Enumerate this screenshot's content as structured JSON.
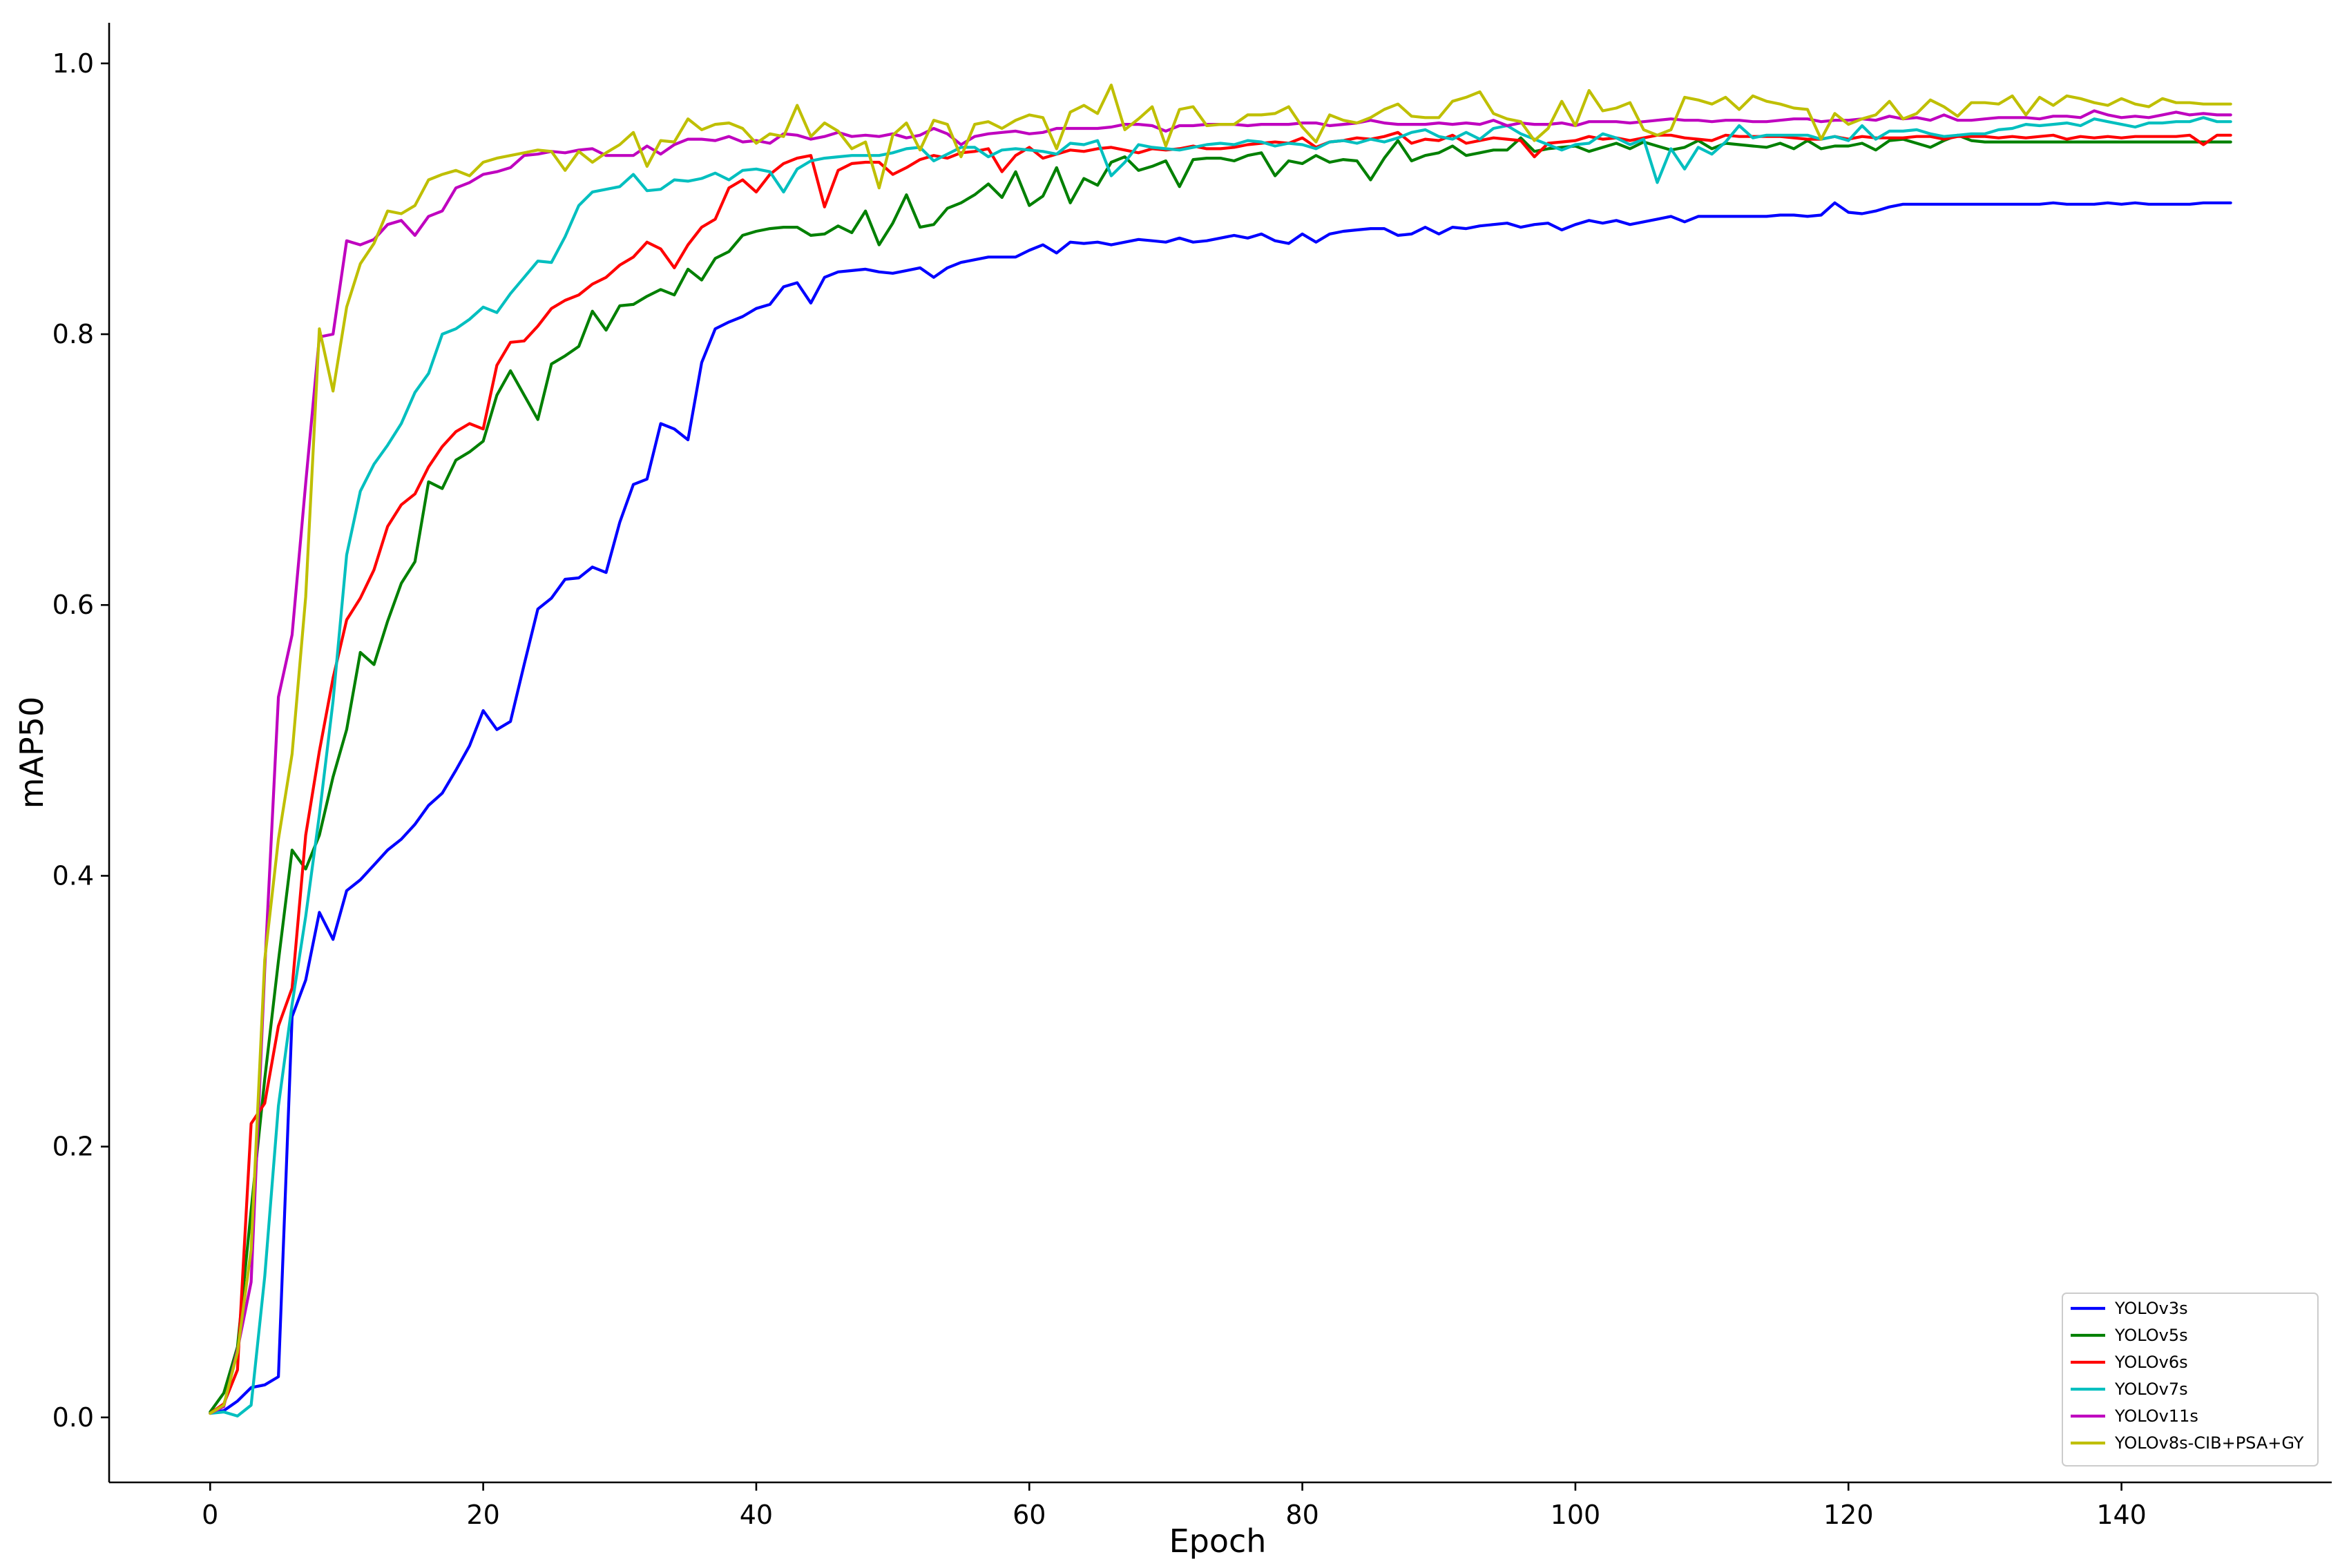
{
  "chart_data": {
    "type": "line",
    "title": "",
    "xlabel": "Epoch",
    "ylabel": "mAP50",
    "xlim": [
      -7.4,
      155.4
    ],
    "ylim": [
      -0.048,
      1.03
    ],
    "xticks": [
      0,
      20,
      40,
      60,
      80,
      100,
      120,
      140
    ],
    "yticks": [
      0.0,
      0.2,
      0.4,
      0.6,
      0.8,
      1.0
    ],
    "xtick_labels": [
      "0",
      "20",
      "40",
      "60",
      "80",
      "100",
      "120",
      "140"
    ],
    "ytick_labels": [
      "0.0",
      "0.2",
      "0.4",
      "0.6",
      "0.8",
      "1.0"
    ],
    "grid": false,
    "legend_position": "bottom-right",
    "x": [
      0,
      1,
      2,
      3,
      4,
      5,
      6,
      7,
      8,
      9,
      10,
      11,
      12,
      13,
      14,
      15,
      16,
      17,
      18,
      19,
      20,
      21,
      22,
      23,
      24,
      25,
      26,
      27,
      28,
      29,
      30,
      31,
      32,
      33,
      34,
      35,
      36,
      37,
      38,
      39,
      40,
      41,
      42,
      43,
      44,
      45,
      46,
      47,
      48,
      49,
      50,
      51,
      52,
      53,
      54,
      55,
      56,
      57,
      58,
      59,
      60,
      61,
      62,
      63,
      64,
      65,
      66,
      67,
      68,
      69,
      70,
      71,
      72,
      73,
      74,
      75,
      76,
      77,
      78,
      79,
      80,
      81,
      82,
      83,
      84,
      85,
      86,
      87,
      88,
      89,
      90,
      91,
      92,
      93,
      94,
      95,
      96,
      97,
      98,
      99,
      100,
      101,
      102,
      103,
      104,
      105,
      106,
      107,
      108,
      109,
      110,
      111,
      112,
      113,
      114,
      115,
      116,
      117,
      118,
      119,
      120,
      121,
      122,
      123,
      124,
      125,
      126,
      127,
      128,
      129,
      130,
      131,
      132,
      133,
      134,
      135,
      136,
      137,
      138,
      139,
      140,
      141,
      142,
      143,
      144,
      145,
      146,
      147,
      148
    ],
    "series": [
      {
        "name": "YOLOv3s",
        "color": "#0000ff",
        "values": [
          0.003,
          0.005,
          0.012,
          0.022,
          0.024,
          0.03,
          0.296,
          0.323,
          0.373,
          0.353,
          0.389,
          0.397,
          0.408,
          0.419,
          0.427,
          0.438,
          0.452,
          0.461,
          0.478,
          0.496,
          0.522,
          0.508,
          0.514,
          0.556,
          0.597,
          0.605,
          0.619,
          0.62,
          0.628,
          0.624,
          0.661,
          0.689,
          0.693,
          0.734,
          0.73,
          0.722,
          0.779,
          0.804,
          0.809,
          0.813,
          0.819,
          0.822,
          0.835,
          0.838,
          0.823,
          0.842,
          0.846,
          0.847,
          0.848,
          0.846,
          0.845,
          0.847,
          0.849,
          0.842,
          0.849,
          0.853,
          0.855,
          0.857,
          0.857,
          0.857,
          0.862,
          0.866,
          0.86,
          0.868,
          0.867,
          0.868,
          0.866,
          0.868,
          0.87,
          0.869,
          0.868,
          0.871,
          0.868,
          0.869,
          0.871,
          0.873,
          0.871,
          0.874,
          0.869,
          0.867,
          0.874,
          0.868,
          0.874,
          0.876,
          0.877,
          0.878,
          0.878,
          0.873,
          0.874,
          0.879,
          0.874,
          0.879,
          0.878,
          0.88,
          0.881,
          0.882,
          0.879,
          0.881,
          0.882,
          0.877,
          0.881,
          0.884,
          0.882,
          0.884,
          0.881,
          0.883,
          0.885,
          0.887,
          0.883,
          0.887,
          0.887,
          0.887,
          0.887,
          0.887,
          0.887,
          0.888,
          0.888,
          0.887,
          0.888,
          0.897,
          0.89,
          0.889,
          0.891,
          0.894,
          0.896,
          0.896,
          0.896,
          0.896,
          0.896,
          0.896,
          0.896,
          0.896,
          0.896,
          0.896,
          0.896,
          0.897,
          0.896,
          0.896,
          0.896,
          0.897,
          0.896,
          0.897,
          0.896,
          0.896,
          0.896,
          0.896,
          0.897,
          0.897,
          0.897
        ]
      },
      {
        "name": "YOLOv5s",
        "color": "#008000",
        "values": [
          0.004,
          0.018,
          0.052,
          0.153,
          0.25,
          0.337,
          0.419,
          0.405,
          0.43,
          0.473,
          0.508,
          0.565,
          0.556,
          0.588,
          0.616,
          0.632,
          0.691,
          0.686,
          0.707,
          0.713,
          0.721,
          0.755,
          0.773,
          0.755,
          0.737,
          0.778,
          0.784,
          0.791,
          0.817,
          0.803,
          0.821,
          0.822,
          0.828,
          0.833,
          0.829,
          0.848,
          0.84,
          0.856,
          0.861,
          0.873,
          0.876,
          0.878,
          0.879,
          0.879,
          0.873,
          0.874,
          0.88,
          0.875,
          0.891,
          0.866,
          0.882,
          0.903,
          0.879,
          0.881,
          0.893,
          0.897,
          0.903,
          0.911,
          0.901,
          0.92,
          0.895,
          0.902,
          0.923,
          0.897,
          0.915,
          0.91,
          0.927,
          0.931,
          0.921,
          0.924,
          0.928,
          0.909,
          0.929,
          0.93,
          0.93,
          0.928,
          0.932,
          0.934,
          0.917,
          0.928,
          0.926,
          0.932,
          0.927,
          0.929,
          0.928,
          0.914,
          0.93,
          0.943,
          0.928,
          0.932,
          0.934,
          0.939,
          0.932,
          0.934,
          0.936,
          0.936,
          0.945,
          0.935,
          0.937,
          0.938,
          0.939,
          0.935,
          0.938,
          0.941,
          0.937,
          0.942,
          0.939,
          0.936,
          0.938,
          0.943,
          0.937,
          0.941,
          0.94,
          0.939,
          0.938,
          0.941,
          0.937,
          0.943,
          0.937,
          0.939,
          0.939,
          0.941,
          0.936,
          0.943,
          0.944,
          0.941,
          0.938,
          0.943,
          0.947,
          0.943,
          0.942,
          0.942,
          0.942,
          0.942,
          0.942,
          0.942,
          0.942,
          0.942,
          0.942,
          0.942,
          0.942,
          0.942,
          0.942,
          0.942,
          0.942,
          0.942,
          0.942,
          0.942,
          0.942
        ]
      },
      {
        "name": "YOLOv6s",
        "color": "#ff0000",
        "values": [
          0.003,
          0.01,
          0.035,
          0.217,
          0.232,
          0.289,
          0.317,
          0.43,
          0.492,
          0.546,
          0.589,
          0.605,
          0.626,
          0.658,
          0.674,
          0.682,
          0.702,
          0.717,
          0.728,
          0.734,
          0.73,
          0.777,
          0.794,
          0.795,
          0.806,
          0.819,
          0.825,
          0.829,
          0.837,
          0.842,
          0.851,
          0.857,
          0.868,
          0.863,
          0.849,
          0.866,
          0.879,
          0.885,
          0.908,
          0.914,
          0.905,
          0.918,
          0.926,
          0.93,
          0.932,
          0.894,
          0.921,
          0.926,
          0.927,
          0.927,
          0.918,
          0.923,
          0.929,
          0.932,
          0.93,
          0.934,
          0.935,
          0.937,
          0.92,
          0.932,
          0.938,
          0.93,
          0.933,
          0.936,
          0.935,
          0.937,
          0.938,
          0.936,
          0.934,
          0.937,
          0.936,
          0.937,
          0.939,
          0.937,
          0.937,
          0.938,
          0.94,
          0.941,
          0.942,
          0.941,
          0.945,
          0.938,
          0.942,
          0.943,
          0.945,
          0.944,
          0.946,
          0.949,
          0.941,
          0.944,
          0.943,
          0.947,
          0.941,
          0.943,
          0.945,
          0.944,
          0.943,
          0.931,
          0.941,
          0.942,
          0.943,
          0.946,
          0.944,
          0.945,
          0.943,
          0.945,
          0.947,
          0.947,
          0.945,
          0.944,
          0.943,
          0.947,
          0.946,
          0.946,
          0.946,
          0.946,
          0.945,
          0.944,
          0.944,
          0.946,
          0.944,
          0.946,
          0.945,
          0.945,
          0.945,
          0.946,
          0.946,
          0.944,
          0.946,
          0.946,
          0.946,
          0.945,
          0.946,
          0.945,
          0.946,
          0.947,
          0.944,
          0.946,
          0.945,
          0.946,
          0.945,
          0.946,
          0.946,
          0.946,
          0.946,
          0.947,
          0.94,
          0.947,
          0.947
        ]
      },
      {
        "name": "YOLOv7s",
        "color": "#00bfbf",
        "values": [
          0.003,
          0.004,
          0.001,
          0.009,
          0.104,
          0.23,
          0.305,
          0.37,
          0.445,
          0.529,
          0.637,
          0.684,
          0.704,
          0.718,
          0.734,
          0.757,
          0.771,
          0.8,
          0.804,
          0.811,
          0.82,
          0.816,
          0.83,
          0.842,
          0.854,
          0.853,
          0.872,
          0.895,
          0.905,
          0.907,
          0.909,
          0.918,
          0.906,
          0.907,
          0.914,
          0.913,
          0.915,
          0.919,
          0.914,
          0.921,
          0.922,
          0.92,
          0.905,
          0.922,
          0.928,
          0.93,
          0.931,
          0.932,
          0.932,
          0.932,
          0.934,
          0.937,
          0.938,
          0.928,
          0.933,
          0.938,
          0.938,
          0.931,
          0.936,
          0.937,
          0.936,
          0.935,
          0.933,
          0.941,
          0.94,
          0.943,
          0.917,
          0.927,
          0.94,
          0.938,
          0.937,
          0.936,
          0.938,
          0.94,
          0.941,
          0.94,
          0.943,
          0.942,
          0.939,
          0.941,
          0.94,
          0.937,
          0.942,
          0.943,
          0.941,
          0.944,
          0.942,
          0.945,
          0.949,
          0.951,
          0.946,
          0.944,
          0.949,
          0.944,
          0.952,
          0.954,
          0.948,
          0.944,
          0.94,
          0.936,
          0.94,
          0.941,
          0.948,
          0.945,
          0.94,
          0.944,
          0.912,
          0.937,
          0.922,
          0.938,
          0.933,
          0.942,
          0.954,
          0.945,
          0.947,
          0.947,
          0.947,
          0.947,
          0.944,
          0.946,
          0.943,
          0.954,
          0.944,
          0.95,
          0.95,
          0.951,
          0.948,
          0.946,
          0.947,
          0.948,
          0.948,
          0.951,
          0.952,
          0.955,
          0.954,
          0.955,
          0.956,
          0.954,
          0.959,
          0.957,
          0.955,
          0.953,
          0.956,
          0.956,
          0.957,
          0.957,
          0.96,
          0.957,
          0.957
        ]
      },
      {
        "name": "YOLOv11s",
        "color": "#bf00bf",
        "values": [
          0.003,
          0.008,
          0.05,
          0.1,
          0.331,
          0.532,
          0.578,
          0.69,
          0.798,
          0.8,
          0.869,
          0.866,
          0.87,
          0.881,
          0.884,
          0.873,
          0.887,
          0.891,
          0.908,
          0.912,
          0.918,
          0.92,
          0.923,
          0.932,
          0.933,
          0.935,
          0.934,
          0.936,
          0.937,
          0.932,
          0.932,
          0.932,
          0.939,
          0.933,
          0.94,
          0.944,
          0.944,
          0.943,
          0.946,
          0.942,
          0.943,
          0.941,
          0.948,
          0.947,
          0.944,
          0.946,
          0.949,
          0.946,
          0.947,
          0.946,
          0.948,
          0.945,
          0.947,
          0.952,
          0.948,
          0.94,
          0.946,
          0.948,
          0.949,
          0.95,
          0.948,
          0.949,
          0.952,
          0.952,
          0.952,
          0.952,
          0.953,
          0.955,
          0.955,
          0.954,
          0.95,
          0.954,
          0.954,
          0.955,
          0.955,
          0.955,
          0.954,
          0.955,
          0.955,
          0.955,
          0.956,
          0.956,
          0.954,
          0.955,
          0.956,
          0.958,
          0.956,
          0.955,
          0.955,
          0.955,
          0.956,
          0.955,
          0.956,
          0.955,
          0.958,
          0.954,
          0.956,
          0.955,
          0.955,
          0.956,
          0.954,
          0.957,
          0.957,
          0.957,
          0.956,
          0.957,
          0.958,
          0.959,
          0.958,
          0.958,
          0.957,
          0.958,
          0.958,
          0.957,
          0.957,
          0.958,
          0.959,
          0.959,
          0.957,
          0.958,
          0.958,
          0.959,
          0.958,
          0.961,
          0.959,
          0.96,
          0.958,
          0.962,
          0.958,
          0.958,
          0.959,
          0.96,
          0.96,
          0.96,
          0.959,
          0.961,
          0.961,
          0.96,
          0.965,
          0.962,
          0.96,
          0.961,
          0.96,
          0.962,
          0.964,
          0.962,
          0.963,
          0.962,
          0.962
        ]
      },
      {
        "name": "YOLOv8s-CIB+PSA+GY",
        "color": "#bfbf00",
        "values": [
          0.003,
          0.009,
          0.048,
          0.124,
          0.338,
          0.427,
          0.49,
          0.606,
          0.804,
          0.758,
          0.82,
          0.852,
          0.867,
          0.891,
          0.889,
          0.895,
          0.914,
          0.918,
          0.921,
          0.917,
          0.927,
          0.93,
          0.932,
          0.934,
          0.936,
          0.935,
          0.921,
          0.935,
          0.927,
          0.934,
          0.94,
          0.949,
          0.924,
          0.943,
          0.942,
          0.959,
          0.951,
          0.955,
          0.956,
          0.952,
          0.941,
          0.948,
          0.946,
          0.969,
          0.946,
          0.956,
          0.95,
          0.937,
          0.942,
          0.908,
          0.947,
          0.956,
          0.936,
          0.958,
          0.955,
          0.931,
          0.955,
          0.957,
          0.952,
          0.958,
          0.962,
          0.96,
          0.937,
          0.964,
          0.969,
          0.963,
          0.984,
          0.951,
          0.959,
          0.968,
          0.939,
          0.966,
          0.968,
          0.954,
          0.955,
          0.955,
          0.962,
          0.962,
          0.963,
          0.968,
          0.953,
          0.942,
          0.962,
          0.958,
          0.956,
          0.96,
          0.966,
          0.97,
          0.961,
          0.96,
          0.96,
          0.972,
          0.975,
          0.979,
          0.963,
          0.959,
          0.957,
          0.943,
          0.952,
          0.972,
          0.954,
          0.98,
          0.965,
          0.967,
          0.971,
          0.951,
          0.947,
          0.951,
          0.975,
          0.973,
          0.97,
          0.975,
          0.966,
          0.976,
          0.972,
          0.97,
          0.967,
          0.966,
          0.944,
          0.963,
          0.955,
          0.959,
          0.962,
          0.972,
          0.959,
          0.963,
          0.973,
          0.968,
          0.961,
          0.971,
          0.971,
          0.97,
          0.976,
          0.962,
          0.975,
          0.969,
          0.976,
          0.974,
          0.971,
          0.969,
          0.974,
          0.97,
          0.968,
          0.974,
          0.971,
          0.971,
          0.97,
          0.97,
          0.97
        ]
      }
    ]
  }
}
